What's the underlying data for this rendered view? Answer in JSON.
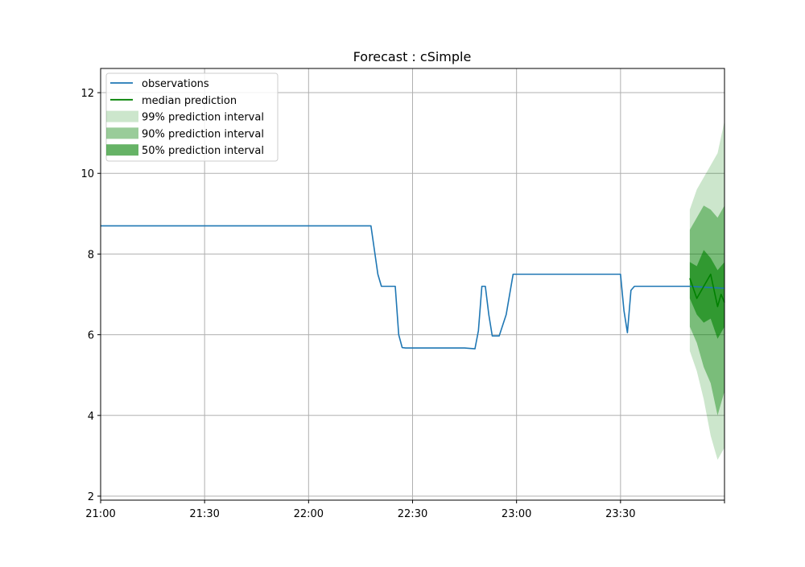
{
  "chart_data": {
    "type": "line",
    "title": "Forecast : cSimple",
    "xlabel": "",
    "ylabel": "",
    "xlim": [
      "21:00",
      "24:00"
    ],
    "ylim": [
      1.9,
      12.6
    ],
    "x_ticks": [
      "21:00",
      "21:30",
      "22:00",
      "22:30",
      "23:00",
      "23:30",
      ""
    ],
    "y_ticks": [
      "2",
      "4",
      "6",
      "8",
      "10",
      "12"
    ],
    "grid": true,
    "legend_position": "top-left",
    "legend": [
      {
        "label": "observations",
        "kind": "line",
        "color": "#1f77b4"
      },
      {
        "label": "median prediction",
        "kind": "line",
        "color": "#008000"
      },
      {
        "label": "99% prediction interval",
        "kind": "band",
        "color": "#008000",
        "opacity": 0.2
      },
      {
        "label": "90% prediction interval",
        "kind": "band",
        "color": "#008000",
        "opacity": 0.4
      },
      {
        "label": "50% prediction interval",
        "kind": "band",
        "color": "#008000",
        "opacity": 0.6
      }
    ],
    "series": [
      {
        "name": "observations",
        "color": "#1f77b4",
        "x": [
          "21:00",
          "22:18",
          "22:20",
          "22:21",
          "22:23",
          "22:25",
          "22:26",
          "22:27",
          "22:28",
          "22:30",
          "22:40",
          "22:45",
          "22:48",
          "22:49",
          "22:50",
          "22:51",
          "22:52",
          "22:53",
          "22:55",
          "22:57",
          "22:59",
          "23:00",
          "23:05",
          "23:30",
          "23:31",
          "23:32",
          "23:33",
          "23:34",
          "23:35",
          "23:40",
          "23:45",
          "23:50",
          "24:00"
        ],
        "y": [
          8.7,
          8.7,
          7.5,
          7.2,
          7.2,
          7.2,
          6.0,
          5.68,
          5.67,
          5.67,
          5.67,
          5.67,
          5.65,
          6.1,
          7.2,
          7.2,
          6.5,
          5.97,
          5.97,
          6.5,
          7.5,
          7.5,
          7.5,
          7.5,
          6.6,
          6.05,
          7.1,
          7.2,
          7.2,
          7.2,
          7.2,
          7.2,
          7.15
        ]
      },
      {
        "name": "median prediction",
        "color": "#008000",
        "x": [
          "23:50",
          "23:52",
          "23:54",
          "23:56",
          "23:58",
          "23:59",
          "24:00"
        ],
        "y": [
          7.4,
          6.9,
          7.2,
          7.5,
          6.7,
          7.0,
          6.8
        ]
      }
    ],
    "intervals": [
      {
        "name": "99% prediction interval",
        "opacity": 0.2,
        "x": [
          "23:50",
          "23:52",
          "23:54",
          "23:56",
          "23:58",
          "24:00"
        ],
        "upper": [
          9.1,
          9.6,
          9.9,
          10.2,
          10.5,
          11.3
        ],
        "lower": [
          5.6,
          5.1,
          4.4,
          3.5,
          2.9,
          3.2
        ]
      },
      {
        "name": "90% prediction interval",
        "opacity": 0.4,
        "x": [
          "23:50",
          "23:52",
          "23:54",
          "23:56",
          "23:58",
          "24:00"
        ],
        "upper": [
          8.6,
          8.9,
          9.2,
          9.1,
          8.9,
          9.2
        ],
        "lower": [
          6.2,
          5.8,
          5.2,
          4.8,
          4.0,
          4.6
        ]
      },
      {
        "name": "50% prediction interval",
        "opacity": 0.6,
        "x": [
          "23:50",
          "23:52",
          "23:54",
          "23:56",
          "23:58",
          "24:00"
        ],
        "upper": [
          7.8,
          7.7,
          8.1,
          7.9,
          7.6,
          7.8
        ],
        "lower": [
          6.9,
          6.5,
          6.3,
          6.4,
          5.9,
          6.2
        ]
      }
    ]
  }
}
